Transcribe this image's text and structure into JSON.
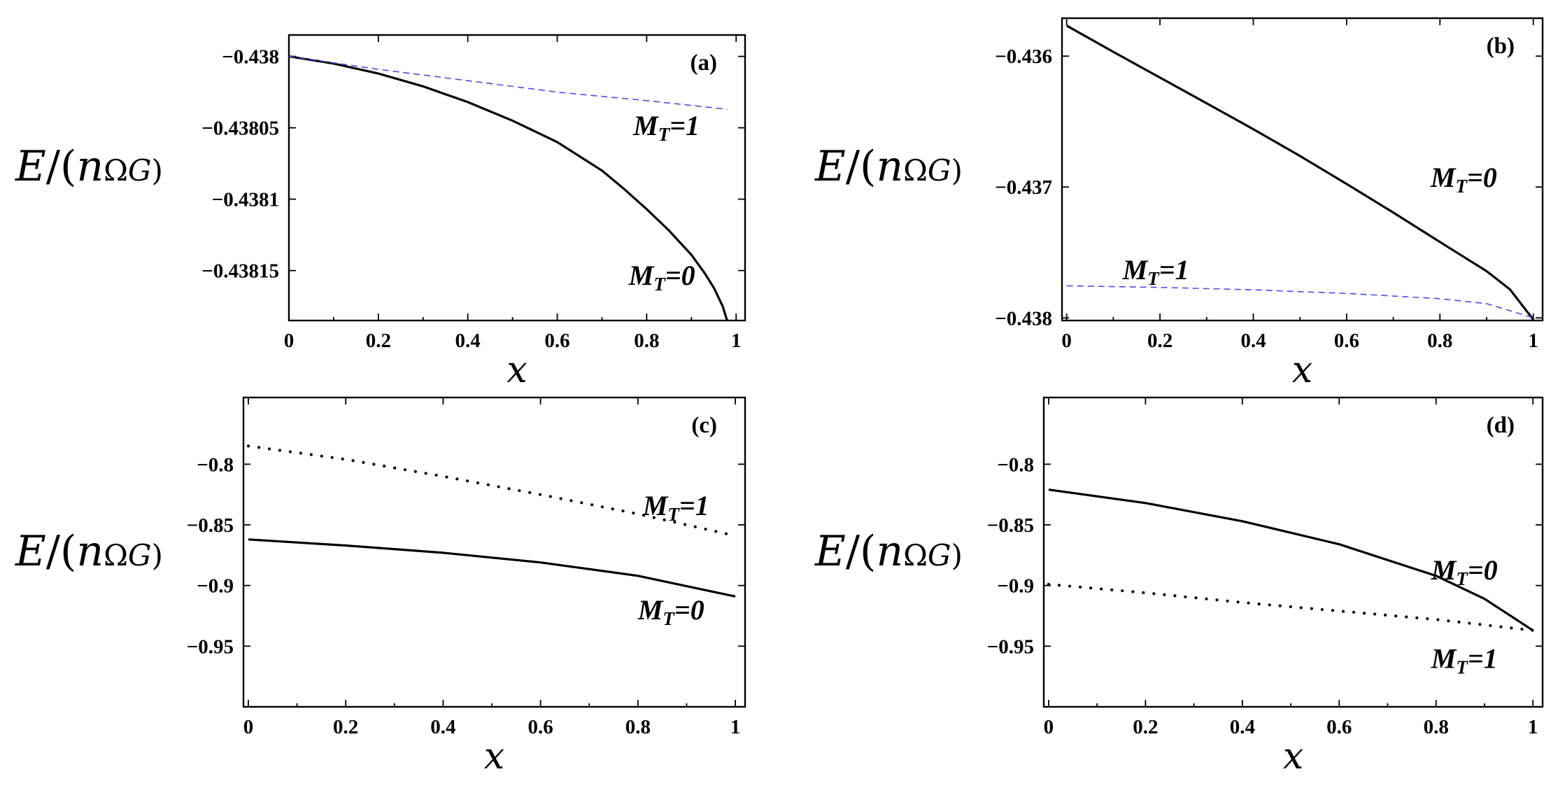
{
  "chart_data": [
    {
      "type": "line",
      "panel_label": "(a)",
      "xlabel": "x",
      "ylabel": {
        "e": "E",
        "mid": "/(",
        "n": "n",
        "omega": "Ω",
        "g": "G",
        "close": ")"
      },
      "xlim": [
        0,
        1.02
      ],
      "ylim": [
        -0.438185,
        -0.437985
      ],
      "xticks": [
        0,
        0.2,
        0.4,
        0.6,
        0.8,
        1
      ],
      "xtick_labels": [
        "0",
        "0.2",
        "0.4",
        "0.6",
        "0.8",
        "1"
      ],
      "yticks": [
        -0.438,
        -0.43805,
        -0.4381,
        -0.43815
      ],
      "ytick_labels": [
        "−0.438",
        "−0.43805",
        "−0.4381",
        "−0.43815"
      ],
      "series": [
        {
          "style": "solid",
          "color": "#000000",
          "width": 3.2,
          "x": [
            0,
            0.1,
            0.2,
            0.3,
            0.4,
            0.5,
            0.6,
            0.7,
            0.75,
            0.8,
            0.85,
            0.9,
            0.93,
            0.95,
            0.97,
            0.98
          ],
          "y": [
            -0.438,
            -0.438005,
            -0.438012,
            -0.438021,
            -0.438032,
            -0.438045,
            -0.43806,
            -0.43808,
            -0.438093,
            -0.438107,
            -0.438122,
            -0.438139,
            -0.438152,
            -0.438162,
            -0.438175,
            -0.438185
          ]
        },
        {
          "style": "dashed",
          "color": "#4a4ae6",
          "width": 1.6,
          "x": [
            0,
            0.2,
            0.4,
            0.6,
            0.8,
            0.98
          ],
          "y": [
            -0.438,
            -0.438009,
            -0.438017,
            -0.438025,
            -0.438031,
            -0.438037
          ]
        }
      ],
      "annotations": [
        {
          "text_m": "M",
          "text_t": "T",
          "text_eq": "=1",
          "x": 0.77,
          "y": -0.438055
        },
        {
          "text_m": "M",
          "text_t": "T",
          "text_eq": "=0",
          "x": 0.76,
          "y": -0.43816
        }
      ]
    },
    {
      "type": "line",
      "panel_label": "(b)",
      "xlabel": "x",
      "ylabel": {
        "e": "E",
        "mid": "/(",
        "n": "n",
        "omega": "Ω",
        "g": "G",
        "close": ")"
      },
      "xlim": [
        -0.01,
        1.02
      ],
      "ylim": [
        -0.43802,
        -0.43571
      ],
      "xticks": [
        0,
        0.2,
        0.4,
        0.6,
        0.8,
        1
      ],
      "xtick_labels": [
        "0",
        "0.2",
        "0.4",
        "0.6",
        "0.8",
        "1"
      ],
      "yticks": [
        -0.436,
        -0.437,
        -0.438
      ],
      "ytick_labels": [
        "−0.436",
        "−0.437",
        "−0.438"
      ],
      "series": [
        {
          "style": "solid",
          "color": "#000000",
          "width": 3.2,
          "x": [
            0,
            0.1,
            0.2,
            0.3,
            0.4,
            0.5,
            0.6,
            0.7,
            0.8,
            0.9,
            0.95,
            1.0
          ],
          "y": [
            -0.435767,
            -0.435967,
            -0.436164,
            -0.43636,
            -0.436558,
            -0.436763,
            -0.436977,
            -0.437195,
            -0.43742,
            -0.437643,
            -0.437782,
            -0.438013
          ]
        },
        {
          "style": "dashed",
          "color": "#4a4ae6",
          "width": 1.6,
          "x": [
            0,
            0.2,
            0.4,
            0.6,
            0.8,
            0.9,
            1.0
          ],
          "y": [
            -0.437755,
            -0.437767,
            -0.437785,
            -0.437813,
            -0.437853,
            -0.437891,
            -0.437999
          ]
        }
      ],
      "annotations": [
        {
          "text_m": "M",
          "text_t": "T",
          "text_eq": "=0",
          "x": 0.78,
          "y": -0.437
        },
        {
          "text_m": "M",
          "text_t": "T",
          "text_eq": "=1",
          "x": 0.12,
          "y": -0.437705
        }
      ]
    },
    {
      "type": "line",
      "panel_label": "(c)",
      "xlabel": "x",
      "ylabel": {
        "e": "E",
        "mid": "/(",
        "n": "n",
        "omega": "Ω",
        "g": "G",
        "close": ")"
      },
      "xlim": [
        -0.01,
        1.02
      ],
      "ylim": [
        -1.0,
        -0.745
      ],
      "xticks": [
        0,
        0.2,
        0.4,
        0.6,
        0.8,
        1
      ],
      "xtick_labels": [
        "0",
        "0.2",
        "0.4",
        "0.6",
        "0.8",
        "1"
      ],
      "yticks": [
        -0.8,
        -0.85,
        -0.9,
        -0.95
      ],
      "ytick_labels": [
        "−0.8",
        "−0.85",
        "−0.9",
        "−0.95"
      ],
      "series": [
        {
          "style": "solid",
          "color": "#000000",
          "width": 3.2,
          "x": [
            0,
            0.2,
            0.4,
            0.6,
            0.8,
            1.0
          ],
          "y": [
            -0.862,
            -0.867,
            -0.873,
            -0.881,
            -0.892,
            -0.909
          ]
        },
        {
          "style": "dotted",
          "color": "#000000",
          "width": 3.2,
          "x": [
            0,
            0.2,
            0.4,
            0.6,
            0.8,
            1.0
          ],
          "y": [
            -0.785,
            -0.796,
            -0.81,
            -0.825,
            -0.841,
            -0.859
          ]
        }
      ],
      "annotations": [
        {
          "text_m": "M",
          "text_t": "T",
          "text_eq": "=1",
          "x": 0.81,
          "y": -0.842
        },
        {
          "text_m": "M",
          "text_t": "T",
          "text_eq": "=0",
          "x": 0.8,
          "y": -0.928
        }
      ]
    },
    {
      "type": "line",
      "panel_label": "(d)",
      "xlabel": "x",
      "ylabel": {
        "e": "E",
        "mid": "/(",
        "n": "n",
        "omega": "Ω",
        "g": "G",
        "close": ")"
      },
      "xlim": [
        -0.01,
        1.02
      ],
      "ylim": [
        -1.0,
        -0.745
      ],
      "xticks": [
        0,
        0.2,
        0.4,
        0.6,
        0.8,
        1
      ],
      "xtick_labels": [
        "0",
        "0.2",
        "0.4",
        "0.6",
        "0.8",
        "1"
      ],
      "yticks": [
        -0.8,
        -0.85,
        -0.9,
        -0.95
      ],
      "ytick_labels": [
        "−0.8",
        "−0.85",
        "−0.9",
        "−0.95"
      ],
      "series": [
        {
          "style": "solid",
          "color": "#000000",
          "width": 3.2,
          "x": [
            0,
            0.2,
            0.4,
            0.6,
            0.8,
            0.9,
            1.0
          ],
          "y": [
            -0.821,
            -0.832,
            -0.847,
            -0.866,
            -0.892,
            -0.911,
            -0.937
          ]
        },
        {
          "style": "dotted",
          "color": "#000000",
          "width": 3.2,
          "x": [
            0,
            0.2,
            0.4,
            0.6,
            0.8,
            1.0
          ],
          "y": [
            -0.899,
            -0.906,
            -0.914,
            -0.921,
            -0.928,
            -0.937
          ]
        }
      ],
      "annotations": [
        {
          "text_m": "M",
          "text_t": "T",
          "text_eq": "=0",
          "x": 0.79,
          "y": -0.895
        },
        {
          "text_m": "M",
          "text_t": "T",
          "text_eq": "=1",
          "x": 0.79,
          "y": -0.968
        }
      ]
    }
  ]
}
